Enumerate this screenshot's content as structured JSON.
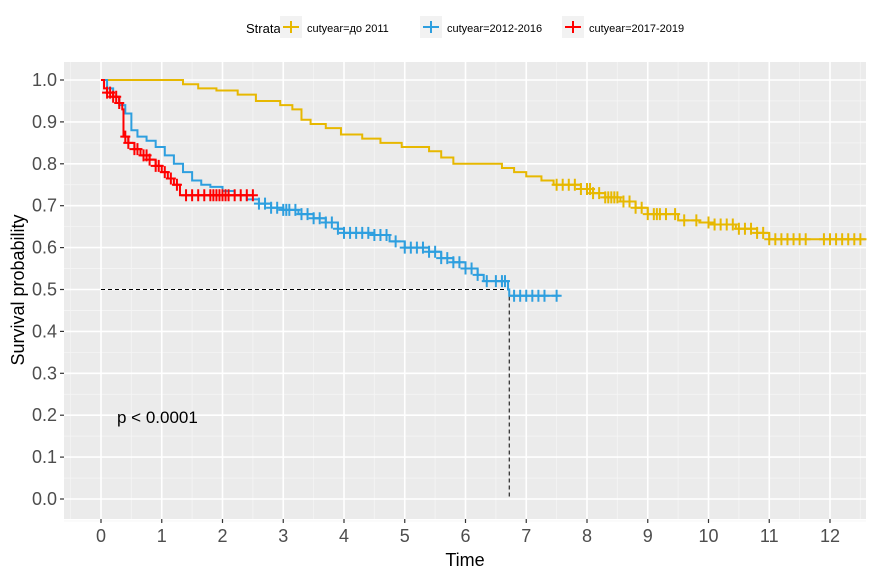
{
  "chart_data": {
    "type": "line",
    "subtype": "kaplan-meier",
    "title": "",
    "xlabel": "Time",
    "ylabel": "Survival probability",
    "xlim": [
      -0.6,
      12.6
    ],
    "ylim": [
      -0.05,
      1.04
    ],
    "x_ticks": [
      0,
      1,
      2,
      3,
      4,
      5,
      6,
      7,
      8,
      9,
      10,
      11,
      12
    ],
    "x_tick_labels": [
      "0",
      "1",
      "2",
      "3",
      "4",
      "5",
      "6",
      "7",
      "8",
      "9",
      "10",
      "11",
      "12"
    ],
    "y_ticks": [
      0,
      0.1,
      0.2,
      0.3,
      0.4,
      0.5,
      0.6,
      0.7,
      0.8,
      0.9,
      1.0
    ],
    "y_tick_labels": [
      "0.0",
      "0.1",
      "0.2",
      "0.3",
      "0.4",
      "0.5",
      "0.6",
      "0.7",
      "0.8",
      "0.9",
      "1.0"
    ],
    "grid": true,
    "legend": {
      "title": "Strata",
      "position": "top",
      "entries": [
        "cutyear=до 2011",
        "cutyear=2012-2016",
        "cutyear=2017-2019"
      ]
    },
    "annotation": "p < 0.0001",
    "median_line": {
      "y": 0.5,
      "x": 6.72
    },
    "series": [
      {
        "name": "cutyear=до 2011",
        "color": "#E7B800",
        "steps": [
          [
            0,
            1.0
          ],
          [
            1.35,
            0.99
          ],
          [
            1.6,
            0.98
          ],
          [
            1.9,
            0.975
          ],
          [
            2.25,
            0.965
          ],
          [
            2.55,
            0.95
          ],
          [
            2.95,
            0.94
          ],
          [
            3.15,
            0.93
          ],
          [
            3.3,
            0.905
          ],
          [
            3.45,
            0.895
          ],
          [
            3.7,
            0.885
          ],
          [
            3.95,
            0.87
          ],
          [
            4.3,
            0.86
          ],
          [
            4.6,
            0.85
          ],
          [
            4.95,
            0.84
          ],
          [
            5.4,
            0.83
          ],
          [
            5.6,
            0.815
          ],
          [
            5.8,
            0.8
          ],
          [
            6.6,
            0.79
          ],
          [
            6.8,
            0.78
          ],
          [
            7.0,
            0.77
          ],
          [
            7.25,
            0.76
          ],
          [
            7.45,
            0.75
          ],
          [
            7.9,
            0.74
          ],
          [
            8.1,
            0.73
          ],
          [
            8.3,
            0.72
          ],
          [
            8.55,
            0.71
          ],
          [
            8.8,
            0.695
          ],
          [
            9.0,
            0.68
          ],
          [
            9.5,
            0.665
          ],
          [
            9.85,
            0.66
          ],
          [
            10.1,
            0.655
          ],
          [
            10.45,
            0.645
          ],
          [
            10.8,
            0.635
          ],
          [
            11.0,
            0.62
          ],
          [
            12.6,
            0.62
          ]
        ],
        "censors": [
          7.5,
          7.6,
          7.7,
          7.8,
          7.9,
          8.0,
          8.05,
          8.1,
          8.2,
          8.3,
          8.35,
          8.4,
          8.45,
          8.5,
          8.6,
          8.7,
          8.8,
          8.9,
          9.0,
          9.1,
          9.15,
          9.2,
          9.3,
          9.45,
          9.6,
          9.8,
          10.0,
          10.1,
          10.2,
          10.3,
          10.4,
          10.5,
          10.6,
          10.7,
          10.8,
          10.9,
          11.0,
          11.1,
          11.2,
          11.3,
          11.4,
          11.5,
          11.6,
          11.9,
          12.0,
          12.1,
          12.2,
          12.3,
          12.4,
          12.5
        ],
        "end": 12.6
      },
      {
        "name": "cutyear=2012-2016",
        "color": "#2E9FDF",
        "steps": [
          [
            0,
            1.0
          ],
          [
            0.1,
            0.98
          ],
          [
            0.2,
            0.96
          ],
          [
            0.3,
            0.94
          ],
          [
            0.4,
            0.92
          ],
          [
            0.5,
            0.88
          ],
          [
            0.6,
            0.865
          ],
          [
            0.75,
            0.855
          ],
          [
            0.9,
            0.84
          ],
          [
            1.05,
            0.82
          ],
          [
            1.2,
            0.8
          ],
          [
            1.35,
            0.78
          ],
          [
            1.5,
            0.76
          ],
          [
            1.65,
            0.75
          ],
          [
            1.8,
            0.745
          ],
          [
            2.0,
            0.735
          ],
          [
            2.2,
            0.725
          ],
          [
            2.4,
            0.715
          ],
          [
            2.6,
            0.705
          ],
          [
            2.8,
            0.695
          ],
          [
            3.0,
            0.69
          ],
          [
            3.25,
            0.68
          ],
          [
            3.5,
            0.67
          ],
          [
            3.7,
            0.66
          ],
          [
            3.9,
            0.645
          ],
          [
            4.0,
            0.635
          ],
          [
            4.5,
            0.63
          ],
          [
            4.75,
            0.615
          ],
          [
            5.0,
            0.6
          ],
          [
            5.4,
            0.59
          ],
          [
            5.6,
            0.575
          ],
          [
            5.8,
            0.565
          ],
          [
            6.0,
            0.55
          ],
          [
            6.2,
            0.535
          ],
          [
            6.3,
            0.52
          ],
          [
            6.7,
            0.5
          ],
          [
            6.72,
            0.485
          ],
          [
            7.55,
            0.485
          ]
        ],
        "censors": [
          2.6,
          2.7,
          2.8,
          2.9,
          3.0,
          3.05,
          3.1,
          3.2,
          3.3,
          3.4,
          3.5,
          3.6,
          3.7,
          3.8,
          3.9,
          4.0,
          4.1,
          4.2,
          4.3,
          4.4,
          4.5,
          4.6,
          4.7,
          4.85,
          5.0,
          5.1,
          5.2,
          5.3,
          5.4,
          5.5,
          5.6,
          5.7,
          5.8,
          5.9,
          6.0,
          6.1,
          6.2,
          6.35,
          6.5,
          6.6,
          6.65,
          6.8,
          6.9,
          7.0,
          7.1,
          7.2,
          7.3,
          7.5
        ],
        "end": 7.55
      },
      {
        "name": "cutyear=2017-2019",
        "color": "#FF0000",
        "steps": [
          [
            0,
            1.0
          ],
          [
            0.05,
            0.98
          ],
          [
            0.1,
            0.97
          ],
          [
            0.2,
            0.96
          ],
          [
            0.3,
            0.945
          ],
          [
            0.35,
            0.93
          ],
          [
            0.37,
            0.865
          ],
          [
            0.45,
            0.85
          ],
          [
            0.55,
            0.835
          ],
          [
            0.65,
            0.82
          ],
          [
            0.8,
            0.81
          ],
          [
            0.9,
            0.795
          ],
          [
            1.0,
            0.78
          ],
          [
            1.1,
            0.765
          ],
          [
            1.2,
            0.75
          ],
          [
            1.3,
            0.725
          ],
          [
            2.5,
            0.725
          ]
        ],
        "censors": [
          0.1,
          0.15,
          0.2,
          0.25,
          0.3,
          0.4,
          0.45,
          0.55,
          0.6,
          0.7,
          0.75,
          0.8,
          0.9,
          0.95,
          1.05,
          1.15,
          1.25,
          1.4,
          1.5,
          1.6,
          1.7,
          1.8,
          1.85,
          1.9,
          1.95,
          2.0,
          2.05,
          2.1,
          2.2,
          2.3,
          2.4,
          2.5
        ],
        "end": 2.5
      }
    ]
  }
}
